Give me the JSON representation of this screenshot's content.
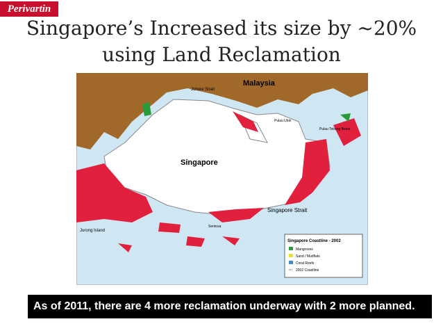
{
  "header": {
    "logo": "Perivartin",
    "title_line_1": "Singapore’s Increased its size by ~20%",
    "title_line_2": "using Land Reclamation"
  },
  "map": {
    "labels": [
      "Malaysia",
      "Johore Strait",
      "Singapore",
      "Singapore Strait",
      "Jurong Island",
      "Pulau Ubin",
      "Pulau Tekong Besar",
      "Sentosa"
    ],
    "legend": {
      "title": "Singapore Coastline - 2002",
      "items": [
        "Mangroves",
        "Sand / Mudflats",
        "Coral Reefs",
        "2002 Coastline"
      ]
    }
  },
  "footer": {
    "caption": "As of 2011, there are 4 more reclamation underway with 2 more planned."
  }
}
